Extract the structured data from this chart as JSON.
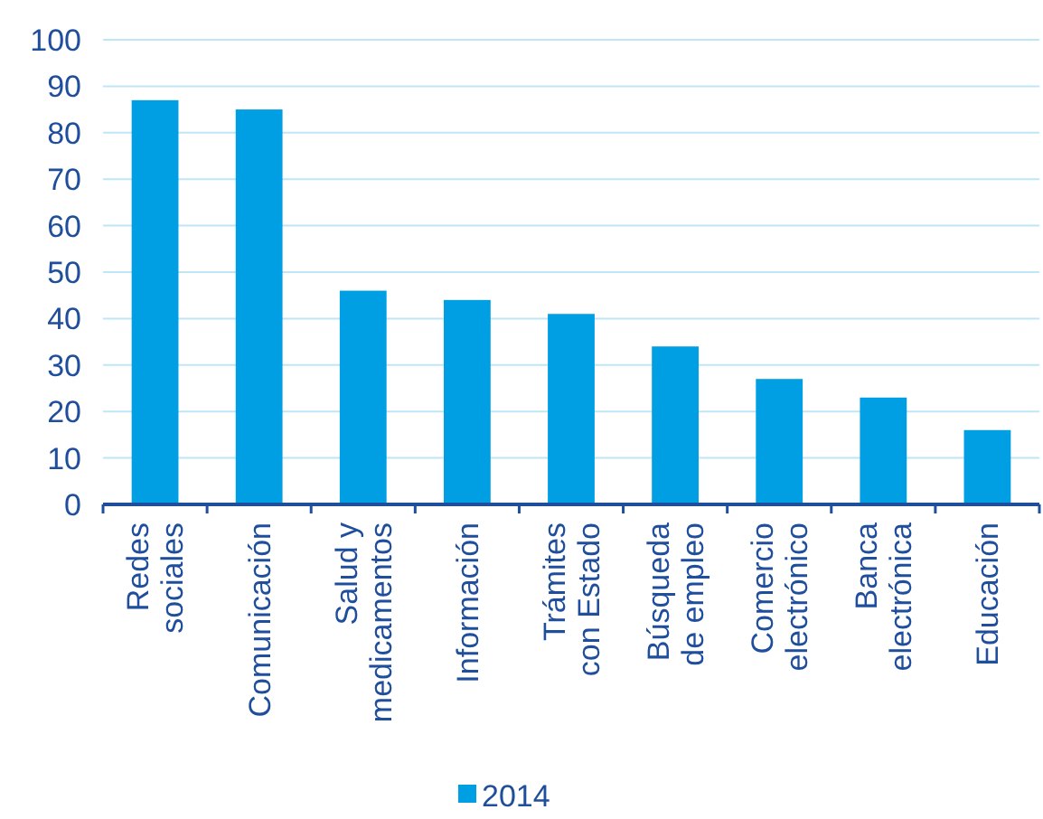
{
  "chart_data": {
    "type": "bar",
    "categories": [
      "Redes\nsociales",
      "Comunicación",
      "Salud y\nmedicamentos",
      "Información",
      "Trámites\ncon Estado",
      "Búsqueda\nde empleo",
      "Comercio\nelectrónico",
      "Banca\nelectrónica",
      "Educación"
    ],
    "series": [
      {
        "name": "2014",
        "color": "#009fe3",
        "values": [
          87,
          85,
          46,
          44,
          41,
          34,
          27,
          23,
          16
        ]
      }
    ],
    "ylim": [
      0,
      100
    ],
    "yticks": [
      0,
      10,
      20,
      30,
      40,
      50,
      60,
      70,
      80,
      90,
      100
    ],
    "grid": "y",
    "legend": "bottom"
  }
}
